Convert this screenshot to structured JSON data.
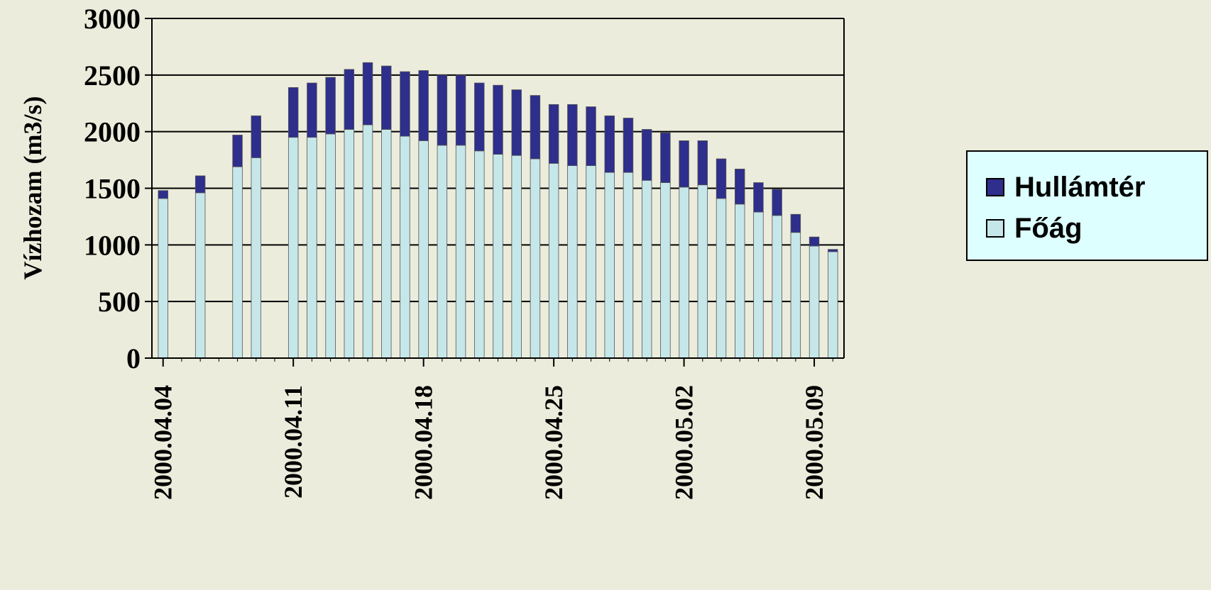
{
  "chart_data": {
    "type": "bar",
    "stacked": true,
    "ylabel": "Vízhozam (m3/s)",
    "xlabel": "",
    "ylim": [
      0,
      3000
    ],
    "yticks": [
      0,
      500,
      1000,
      1500,
      2000,
      2500,
      3000
    ],
    "xrange": [
      "2000.04.04",
      "2000.05.10"
    ],
    "xticks": [
      "2000.04.04",
      "2000.04.11",
      "2000.04.18",
      "2000.04.25",
      "2000.05.02",
      "2000.05.09"
    ],
    "grid": true,
    "legend_position": "right",
    "categories": [
      "2000.04.04",
      "2000.04.06",
      "2000.04.08",
      "2000.04.09",
      "2000.04.11",
      "2000.04.12",
      "2000.04.13",
      "2000.04.14",
      "2000.04.15",
      "2000.04.16",
      "2000.04.17",
      "2000.04.18",
      "2000.04.19",
      "2000.04.20",
      "2000.04.21",
      "2000.04.22",
      "2000.04.23",
      "2000.04.24",
      "2000.04.25",
      "2000.04.26",
      "2000.04.27",
      "2000.04.28",
      "2000.04.29",
      "2000.04.30",
      "2000.05.01",
      "2000.05.02",
      "2000.05.03",
      "2000.05.04",
      "2000.05.05",
      "2000.05.06",
      "2000.05.07",
      "2000.05.08",
      "2000.05.09",
      "2000.05.10"
    ],
    "series": [
      {
        "name": "Főág",
        "color": "#C6E7EA",
        "values": [
          1410,
          1460,
          1690,
          1770,
          1950,
          1950,
          1980,
          2020,
          2060,
          2020,
          1960,
          1920,
          1880,
          1880,
          1830,
          1800,
          1790,
          1760,
          1720,
          1700,
          1700,
          1640,
          1640,
          1570,
          1550,
          1510,
          1530,
          1410,
          1360,
          1290,
          1260,
          1110,
          990,
          940
        ]
      },
      {
        "name": "Hullámtér",
        "color": "#2E2E8C",
        "values": [
          70,
          150,
          280,
          370,
          440,
          480,
          500,
          530,
          550,
          560,
          570,
          620,
          620,
          620,
          600,
          610,
          580,
          560,
          520,
          540,
          520,
          500,
          480,
          450,
          440,
          410,
          390,
          350,
          310,
          260,
          230,
          160,
          80,
          20
        ]
      }
    ]
  },
  "legend": [
    {
      "label": "Hullámtér",
      "color": "#2E2E8C"
    },
    {
      "label": "Főág",
      "color": "#C6E7EA"
    }
  ]
}
